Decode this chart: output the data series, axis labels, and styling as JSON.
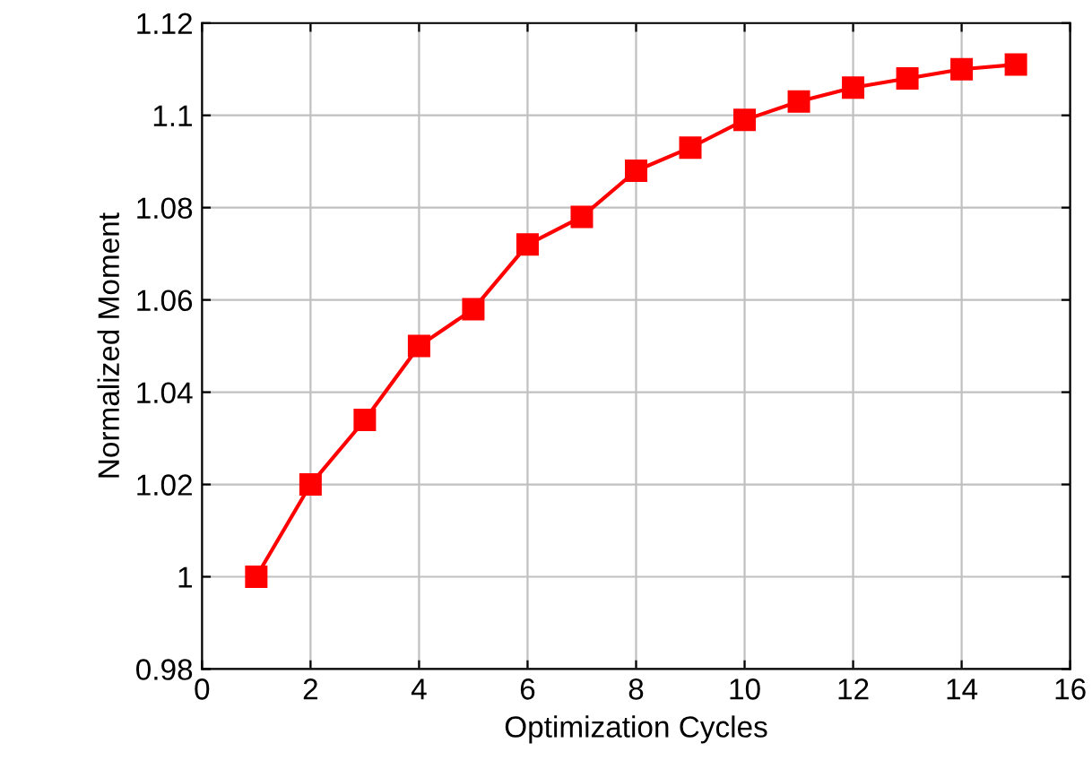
{
  "chart_data": {
    "type": "line",
    "xlabel": "Optimization Cycles",
    "ylabel": "Normalized Moment",
    "x": [
      1,
      2,
      3,
      4,
      5,
      6,
      7,
      8,
      9,
      10,
      11,
      12,
      13,
      14,
      15
    ],
    "series": [
      {
        "color": "#ff0000",
        "values": [
          1.0,
          1.02,
          1.034,
          1.05,
          1.058,
          1.072,
          1.078,
          1.088,
          1.093,
          1.099,
          1.103,
          1.106,
          1.108,
          1.11,
          1.111
        ]
      }
    ],
    "xlim": [
      0,
      16
    ],
    "xticks": [
      0,
      2,
      4,
      6,
      8,
      10,
      12,
      14,
      16
    ],
    "ylim": [
      0.98,
      1.12
    ],
    "yticks": [
      0.98,
      1,
      1.02,
      1.04,
      1.06,
      1.08,
      1.1,
      1.12
    ],
    "grid": true,
    "marker": "square",
    "line_style": "solid"
  }
}
